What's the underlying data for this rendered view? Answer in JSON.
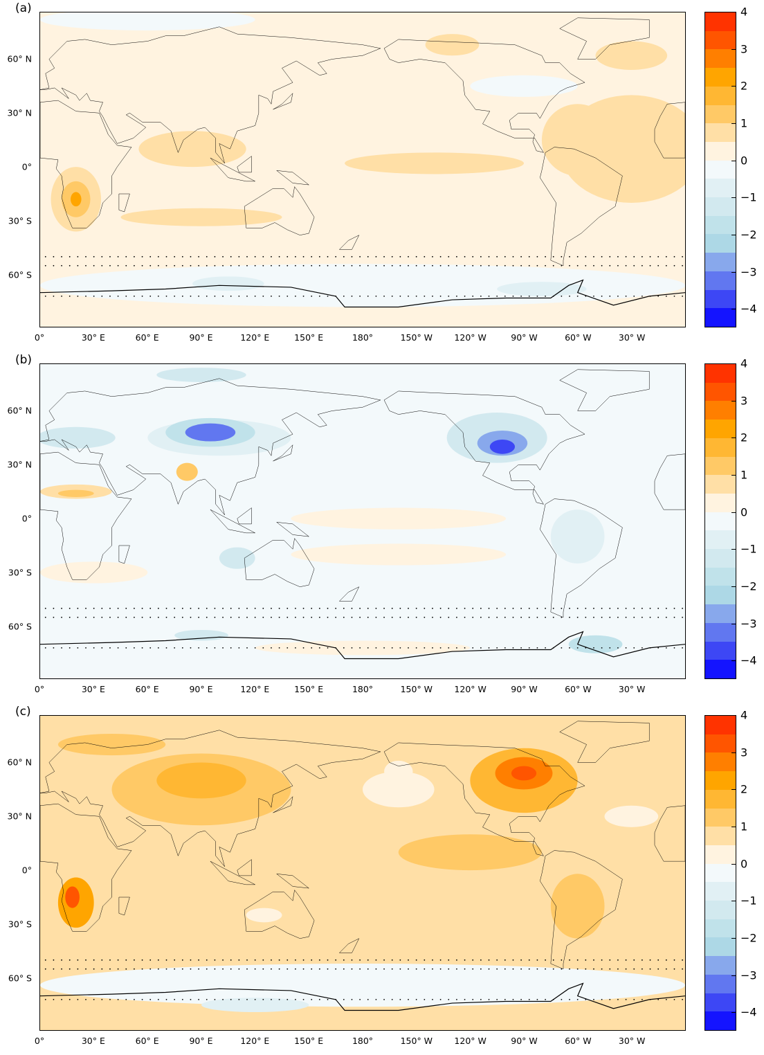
{
  "panels": [
    {
      "label": "(a)"
    },
    {
      "label": "(b)"
    },
    {
      "label": "(c)"
    }
  ],
  "lat_ticks": [
    {
      "label": "60° N",
      "lat": 60
    },
    {
      "label": "30° N",
      "lat": 30
    },
    {
      "label": "0°",
      "lat": 0
    },
    {
      "label": "30° S",
      "lat": -30
    },
    {
      "label": "60° S",
      "lat": -60
    }
  ],
  "lon_ticks": [
    {
      "label": "0°",
      "lon": 0
    },
    {
      "label": "30° E",
      "lon": 30
    },
    {
      "label": "60° E",
      "lon": 60
    },
    {
      "label": "90° E",
      "lon": 90
    },
    {
      "label": "120° E",
      "lon": 120
    },
    {
      "label": "150° E",
      "lon": 150
    },
    {
      "label": "180°",
      "lon": 180
    },
    {
      "label": "150° W",
      "lon": 210
    },
    {
      "label": "120° W",
      "lon": 240
    },
    {
      "label": "90° W",
      "lon": 270
    },
    {
      "label": "60° W",
      "lon": 300
    },
    {
      "label": "30° W",
      "lon": 330
    }
  ],
  "colorbar": {
    "range": [
      -4.5,
      4
    ],
    "ticks": [
      {
        "label": "4",
        "v": 4
      },
      {
        "label": "3",
        "v": 3
      },
      {
        "label": "2",
        "v": 2
      },
      {
        "label": "1",
        "v": 1
      },
      {
        "label": "0",
        "v": 0
      },
      {
        "label": "−1",
        "v": -1
      },
      {
        "label": "−2",
        "v": -2
      },
      {
        "label": "−3",
        "v": -3
      },
      {
        "label": "−4",
        "v": -4
      }
    ],
    "colors": [
      "#ff3300",
      "#ff5500",
      "#ff7f00",
      "#ffa500",
      "#ffb733",
      "#ffc966",
      "#ffdfa6",
      "#fff3e0",
      "#f3f9fb",
      "#e1f0f4",
      "#d2e9ef",
      "#c0e2ea",
      "#add8e6",
      "#88a8ec",
      "#6177f0",
      "#3d47f5",
      "#1414ff"
    ]
  }
}
